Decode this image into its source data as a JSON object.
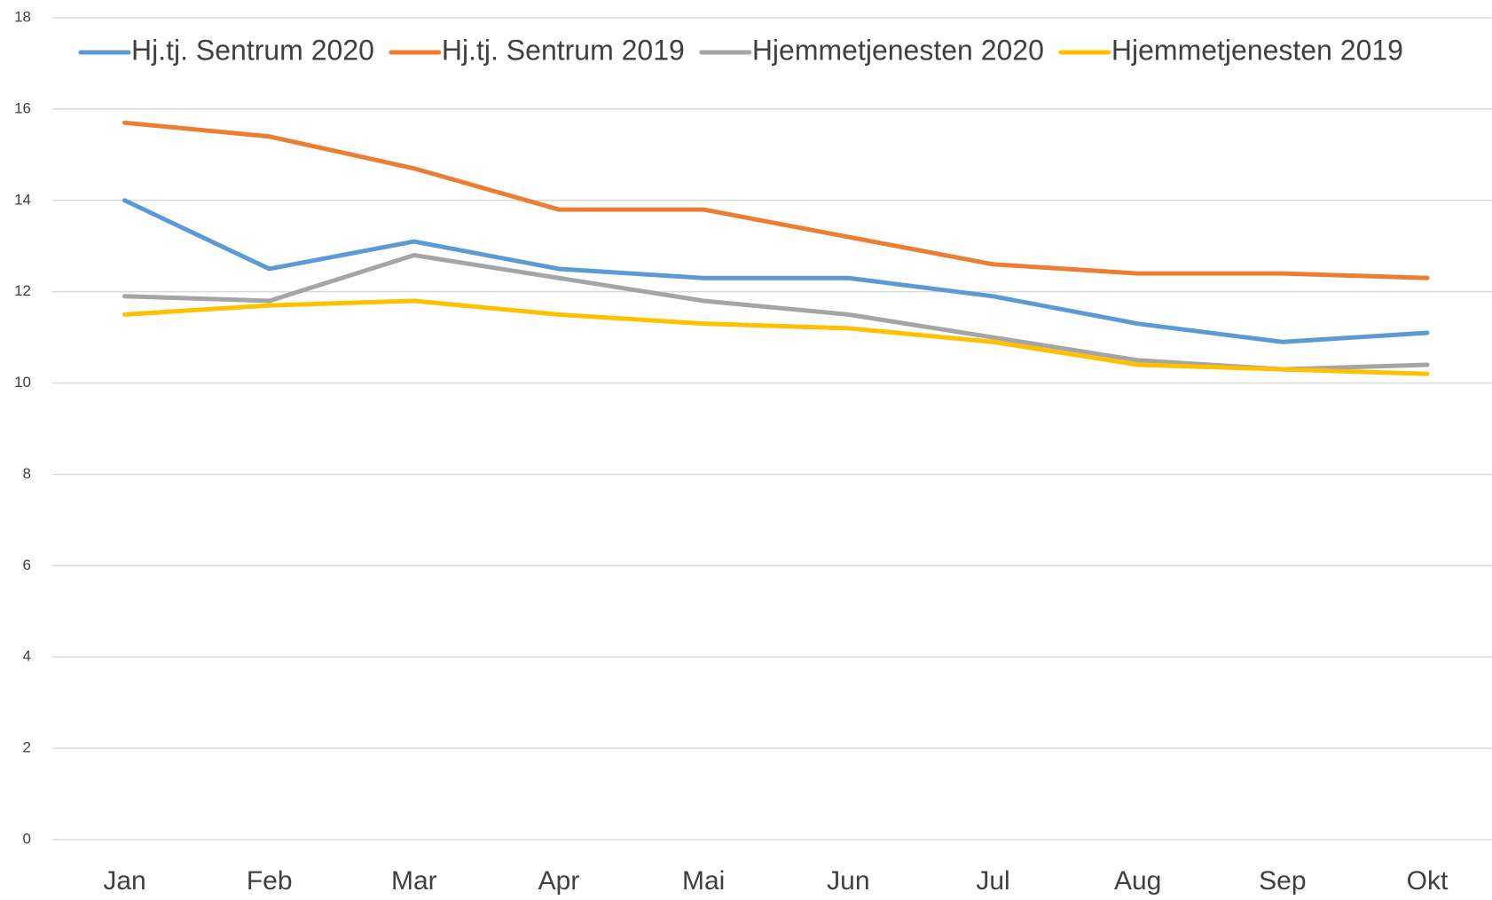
{
  "chart_data": {
    "type": "line",
    "categories": [
      "Jan",
      "Feb",
      "Mar",
      "Apr",
      "Mai",
      "Jun",
      "Jul",
      "Aug",
      "Sep",
      "Okt"
    ],
    "series": [
      {
        "name": "Hj.tj. Sentrum 2020",
        "color": "#5b9bd5",
        "values": [
          14.0,
          12.5,
          13.1,
          12.5,
          12.3,
          12.3,
          11.9,
          11.3,
          10.9,
          11.1
        ]
      },
      {
        "name": "Hj.tj. Sentrum 2019",
        "color": "#ed7d31",
        "values": [
          15.7,
          15.4,
          14.7,
          13.8,
          13.8,
          13.2,
          12.6,
          12.4,
          12.4,
          12.3
        ]
      },
      {
        "name": "Hjemmetjenesten 2020",
        "color": "#a5a5a5",
        "values": [
          11.9,
          11.8,
          12.8,
          12.3,
          11.8,
          11.5,
          11.0,
          10.5,
          10.3,
          10.4
        ]
      },
      {
        "name": "Hjemmetjenesten 2019",
        "color": "#ffc000",
        "values": [
          11.5,
          11.7,
          11.8,
          11.5,
          11.3,
          11.2,
          10.9,
          10.4,
          10.3,
          10.2
        ]
      }
    ],
    "ylim": [
      0,
      18
    ],
    "yticks": [
      0,
      2,
      4,
      6,
      8,
      10,
      12,
      14,
      16,
      18
    ],
    "grid": true,
    "legend": "top"
  }
}
